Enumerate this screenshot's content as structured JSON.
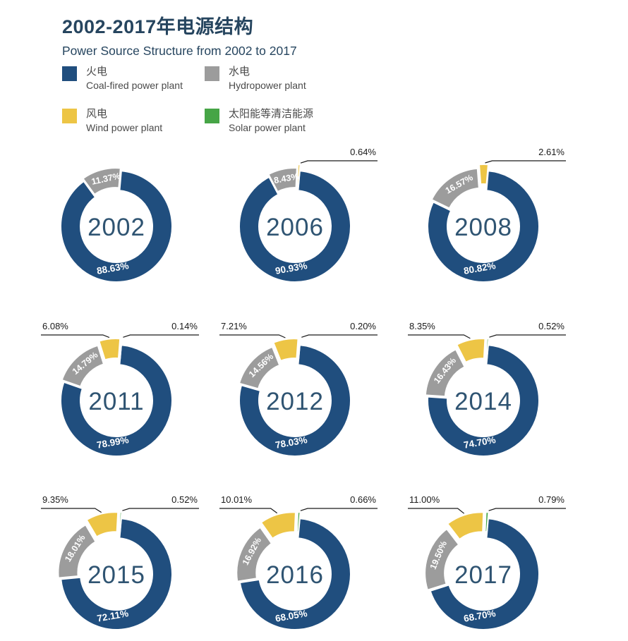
{
  "header": {
    "title": "2002-2017年电源结构",
    "subtitle": "Power Source Structure from 2002 to 2017"
  },
  "legend": {
    "items": [
      {
        "key": "coal",
        "zh": "火电",
        "en": "Coal-fired power plant"
      },
      {
        "key": "hydro",
        "zh": "水电",
        "en": "Hydropower plant"
      },
      {
        "key": "wind",
        "zh": "风电",
        "en": "Wind power plant"
      },
      {
        "key": "solar",
        "zh": "太阳能等清洁能源",
        "en": "Solar power plant"
      }
    ]
  },
  "colors": {
    "coal": "#204E7E",
    "hydro": "#9C9C9C",
    "wind": "#EDC545",
    "solar": "#46A546",
    "title_text": "#26455F",
    "year_text": "#2F5472",
    "callout_line": "#1a1a1a",
    "slice_label_text": "#ffffff"
  },
  "chart_data": {
    "type": "pie",
    "subtype": "donut-small-multiples",
    "title": "2002-2017年电源结构",
    "subtitle": "Power Source Structure from 2002 to 2017",
    "unit": "%",
    "series_keys": [
      "coal",
      "hydro",
      "wind",
      "solar"
    ],
    "series_names": [
      "火电 Coal-fired power plant",
      "水电 Hydropower plant",
      "风电 Wind power plant",
      "太阳能等清洁能源 Solar power plant"
    ],
    "charts": [
      {
        "year": "2002",
        "slices": [
          {
            "key": "coal",
            "value": 88.63,
            "label": "88.63%",
            "label_pos": "inside-bottom"
          },
          {
            "key": "hydro",
            "value": 11.37,
            "label": "11.37%",
            "label_pos": "inside-arc"
          }
        ]
      },
      {
        "year": "2006",
        "slices": [
          {
            "key": "coal",
            "value": 90.93,
            "label": "90.93%",
            "label_pos": "inside-bottom"
          },
          {
            "key": "hydro",
            "value": 8.43,
            "label": "8.43%",
            "label_pos": "inside-arc"
          },
          {
            "key": "wind",
            "value": 0.64,
            "label": "0.64%",
            "label_pos": "callout-right"
          }
        ]
      },
      {
        "year": "2008",
        "slices": [
          {
            "key": "coal",
            "value": 80.82,
            "label": "80.82%",
            "label_pos": "inside-bottom"
          },
          {
            "key": "hydro",
            "value": 16.57,
            "label": "16.57%",
            "label_pos": "inside-arc"
          },
          {
            "key": "wind",
            "value": 2.61,
            "label": "2.61%",
            "label_pos": "callout-right"
          }
        ]
      },
      {
        "year": "2011",
        "slices": [
          {
            "key": "coal",
            "value": 78.99,
            "label": "78.99%",
            "label_pos": "inside-bottom"
          },
          {
            "key": "hydro",
            "value": 14.79,
            "label": "14.79%",
            "label_pos": "inside-arc"
          },
          {
            "key": "wind",
            "value": 6.08,
            "label": "6.08%",
            "label_pos": "callout-left"
          },
          {
            "key": "solar",
            "value": 0.14,
            "label": "0.14%",
            "label_pos": "callout-right"
          }
        ]
      },
      {
        "year": "2012",
        "slices": [
          {
            "key": "coal",
            "value": 78.03,
            "label": "78.03%",
            "label_pos": "inside-bottom"
          },
          {
            "key": "hydro",
            "value": 14.56,
            "label": "14.56%",
            "label_pos": "inside-arc"
          },
          {
            "key": "wind",
            "value": 7.21,
            "label": "7.21%",
            "label_pos": "callout-left"
          },
          {
            "key": "solar",
            "value": 0.2,
            "label": "0.20%",
            "label_pos": "callout-right"
          }
        ]
      },
      {
        "year": "2014",
        "slices": [
          {
            "key": "coal",
            "value": 74.7,
            "label": "74.70%",
            "label_pos": "inside-bottom"
          },
          {
            "key": "hydro",
            "value": 16.43,
            "label": "16.43%",
            "label_pos": "inside-arc"
          },
          {
            "key": "wind",
            "value": 8.35,
            "label": "8.35%",
            "label_pos": "callout-left"
          },
          {
            "key": "solar",
            "value": 0.52,
            "label": "0.52%",
            "label_pos": "callout-right"
          }
        ]
      },
      {
        "year": "2015",
        "slices": [
          {
            "key": "coal",
            "value": 72.11,
            "label": "72.11%",
            "label_pos": "inside-bottom"
          },
          {
            "key": "hydro",
            "value": 18.01,
            "label": "18.01%",
            "label_pos": "inside-arc"
          },
          {
            "key": "wind",
            "value": 9.35,
            "label": "9.35%",
            "label_pos": "callout-left"
          },
          {
            "key": "solar",
            "value": 0.52,
            "label": "0.52%",
            "label_pos": "callout-right"
          }
        ]
      },
      {
        "year": "2016",
        "slices": [
          {
            "key": "coal",
            "value": 68.05,
            "label": "68.05%",
            "label_pos": "inside-bottom"
          },
          {
            "key": "hydro",
            "value": 16.92,
            "label": "16.92%",
            "label_pos": "inside-arc"
          },
          {
            "key": "wind",
            "value": 10.01,
            "label": "10.01%",
            "label_pos": "callout-left"
          },
          {
            "key": "solar",
            "value": 0.66,
            "label": "0.66%",
            "label_pos": "callout-right"
          }
        ]
      },
      {
        "year": "2017",
        "slices": [
          {
            "key": "coal",
            "value": 68.7,
            "label": "68.70%",
            "label_pos": "inside-bottom"
          },
          {
            "key": "hydro",
            "value": 19.5,
            "label": "19.50%",
            "label_pos": "inside-arc"
          },
          {
            "key": "wind",
            "value": 11.0,
            "label": "11.00%",
            "label_pos": "callout-left"
          },
          {
            "key": "solar",
            "value": 0.79,
            "label": "0.79%",
            "label_pos": "callout-right"
          }
        ]
      }
    ]
  }
}
